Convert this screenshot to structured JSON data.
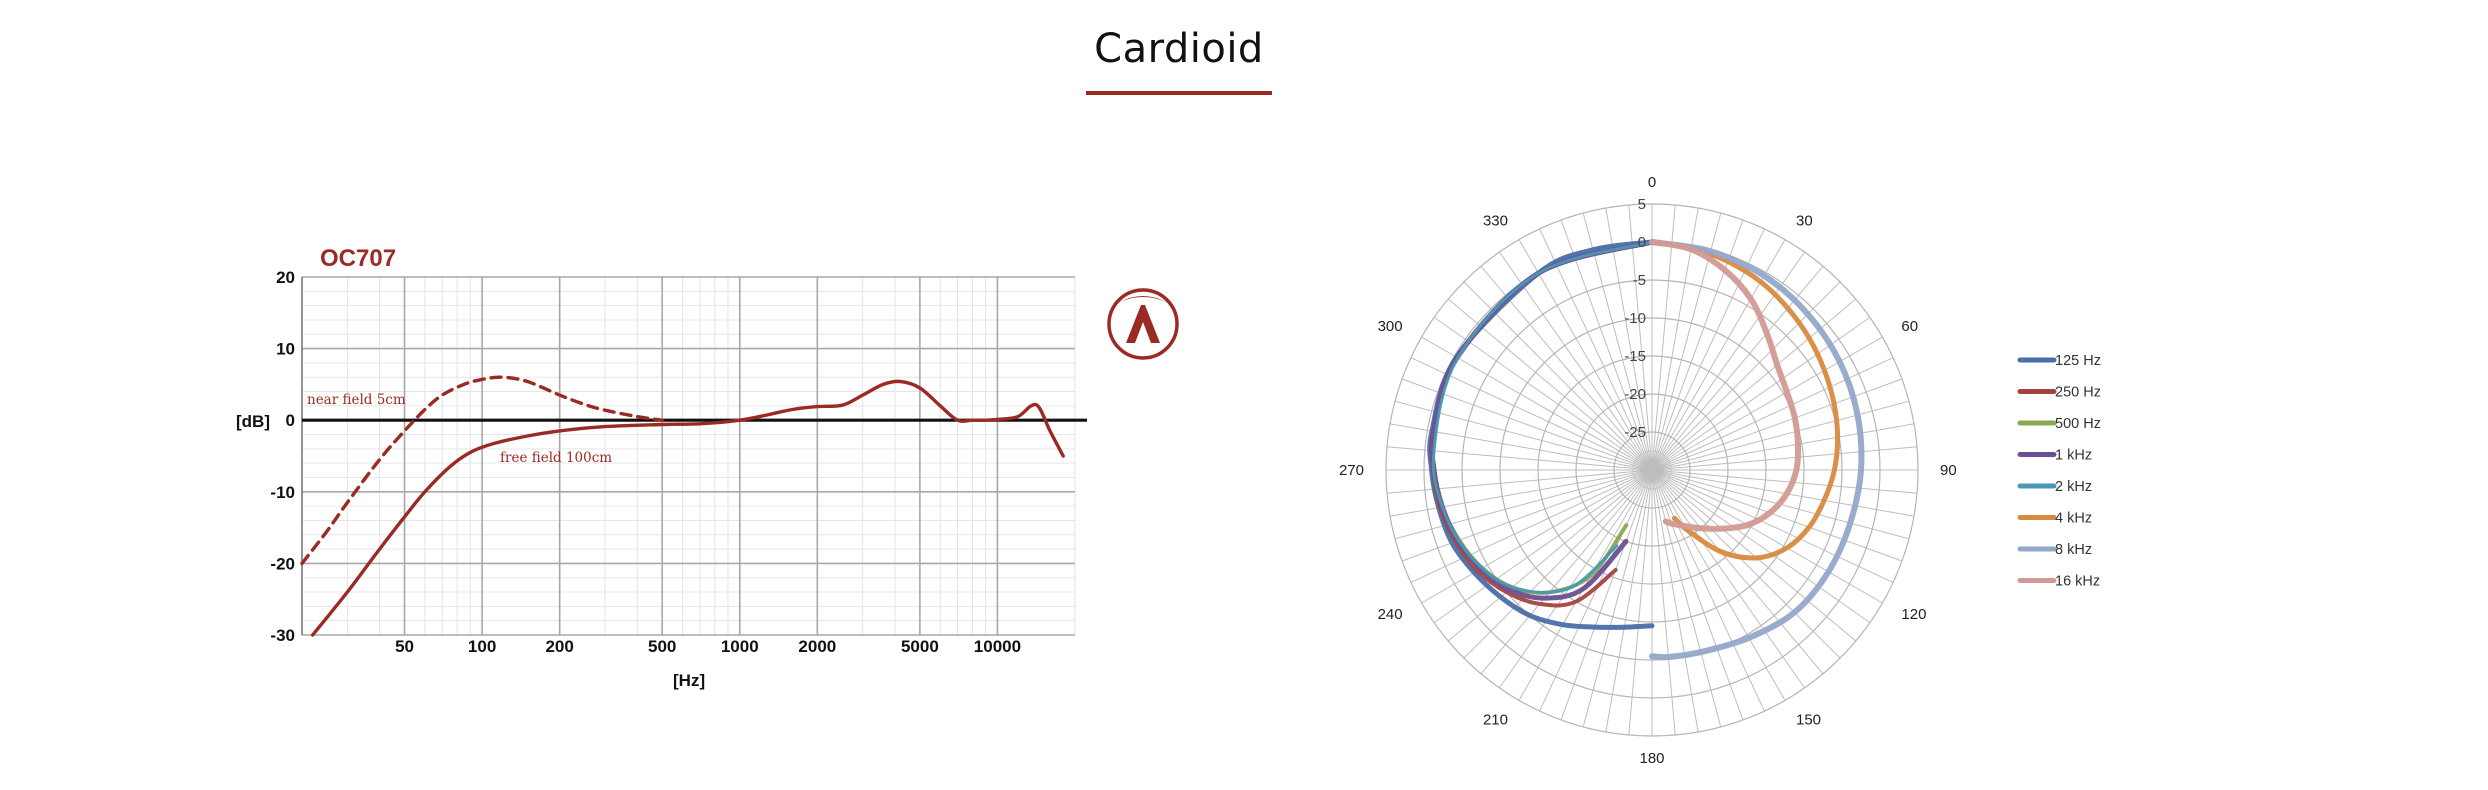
{
  "page": {
    "title": "Cardioid"
  },
  "chart_data": [
    {
      "type": "line",
      "title": "OC707",
      "xscale": "log",
      "xlabel": "[Hz]",
      "ylabel": "[dB]",
      "xlim": [
        20,
        20000
      ],
      "ylim": [
        -30,
        20
      ],
      "xticks": [
        50,
        100,
        200,
        500,
        1000,
        2000,
        5000,
        10000
      ],
      "xtick_labels": [
        "50",
        "100",
        "200",
        "500",
        "1000",
        "2000",
        "5000",
        "10000"
      ],
      "yticks": [
        20,
        10,
        0,
        -10,
        -20,
        -30
      ],
      "ytick_labels": [
        "20",
        "10",
        "0",
        "-10",
        "-20",
        "-30"
      ],
      "grid": true,
      "reference_line": 0,
      "annotations": [
        {
          "text": "near field 5cm"
        },
        {
          "text": "free field 100cm"
        }
      ],
      "series": [
        {
          "label_ref": "near field 5cm",
          "style": "dashed",
          "color": "#9b2a24",
          "points": [
            [
              20,
              -20
            ],
            [
              25,
              -15.5
            ],
            [
              30,
              -11.5
            ],
            [
              40,
              -5.5
            ],
            [
              50,
              -1.5
            ],
            [
              60,
              1.5
            ],
            [
              70,
              3.5
            ],
            [
              85,
              5
            ],
            [
              100,
              5.7
            ],
            [
              120,
              6
            ],
            [
              150,
              5.4
            ],
            [
              200,
              3.5
            ],
            [
              250,
              2.2
            ],
            [
              300,
              1.4
            ],
            [
              400,
              0.5
            ],
            [
              500,
              0
            ]
          ]
        },
        {
          "label_ref": "free field 100cm",
          "style": "solid",
          "color": "#9b2a24",
          "points": [
            [
              22,
              -30
            ],
            [
              30,
              -24
            ],
            [
              40,
              -18
            ],
            [
              50,
              -13.5
            ],
            [
              60,
              -10
            ],
            [
              75,
              -6.5
            ],
            [
              90,
              -4.5
            ],
            [
              110,
              -3.3
            ],
            [
              150,
              -2.2
            ],
            [
              200,
              -1.5
            ],
            [
              300,
              -0.9
            ],
            [
              500,
              -0.6
            ],
            [
              700,
              -0.5
            ],
            [
              1000,
              0
            ],
            [
              1300,
              0.8
            ],
            [
              1600,
              1.5
            ],
            [
              2000,
              1.9
            ],
            [
              2500,
              2.1
            ],
            [
              3000,
              3.5
            ],
            [
              3600,
              5
            ],
            [
              4200,
              5.4
            ],
            [
              5000,
              4.5
            ],
            [
              6000,
              2
            ],
            [
              7000,
              0
            ],
            [
              8000,
              0
            ],
            [
              9000,
              0
            ],
            [
              10000,
              0.1
            ],
            [
              12000,
              0.5
            ],
            [
              13500,
              2
            ],
            [
              14500,
              1.8
            ],
            [
              16000,
              -1.5
            ],
            [
              18000,
              -5
            ]
          ]
        }
      ]
    },
    {
      "type": "polar",
      "angle_ticks": [
        0,
        30,
        60,
        90,
        120,
        150,
        180,
        210,
        240,
        270,
        300,
        330
      ],
      "angle_tick_labels": [
        "0",
        "30",
        "60",
        "90",
        "120",
        "150",
        "180",
        "210",
        "240",
        "270",
        "300",
        "330"
      ],
      "radial_range": [
        -30,
        5
      ],
      "radial_ticks": [
        5,
        0,
        -5,
        -10,
        -15,
        -20,
        -25
      ],
      "radial_tick_labels": [
        "5",
        "0",
        "-5",
        "-10",
        "-15",
        "-20",
        "-25"
      ],
      "legend": "right",
      "legend_entries": [
        "125 Hz",
        "250 Hz",
        "500 Hz",
        "1 kHz",
        "2 kHz",
        "4 kHz",
        "8 kHz",
        "16 kHz"
      ],
      "series": [
        {
          "name": "125 Hz",
          "color": "#4a6ea8",
          "width": 5,
          "angle_range": [
            180,
            360
          ],
          "points": [
            [
              180,
              -9.5
            ],
            [
              190,
              -9
            ],
            [
              200,
              -8
            ],
            [
              210,
              -6.5
            ],
            [
              220,
              -5
            ],
            [
              230,
              -4
            ],
            [
              240,
              -3
            ],
            [
              250,
              -2
            ],
            [
              260,
              -1.5
            ],
            [
              270,
              -1
            ],
            [
              280,
              -0.6
            ],
            [
              300,
              -0.3
            ],
            [
              330,
              -0.1
            ],
            [
              345,
              0
            ],
            [
              360,
              0
            ]
          ]
        },
        {
          "name": "250 Hz",
          "color": "#a3433e",
          "width": 4,
          "angle_range": [
            200,
            360
          ],
          "points": [
            [
              200,
              -16
            ],
            [
              210,
              -10
            ],
            [
              220,
              -7
            ],
            [
              230,
              -5
            ],
            [
              240,
              -3.5
            ],
            [
              250,
              -2.5
            ],
            [
              260,
              -1.7
            ],
            [
              270,
              -1.2
            ],
            [
              280,
              -0.8
            ],
            [
              300,
              -0.4
            ],
            [
              330,
              -0.1
            ],
            [
              360,
              0
            ]
          ]
        },
        {
          "name": "500 Hz",
          "color": "#8aa851",
          "width": 4,
          "angle_range": [
            205,
            360
          ],
          "points": [
            [
              205,
              -22
            ],
            [
              210,
              -14
            ],
            [
              220,
              -9
            ],
            [
              230,
              -6
            ],
            [
              240,
              -4.2
            ],
            [
              250,
              -3
            ],
            [
              260,
              -2
            ],
            [
              270,
              -1.4
            ],
            [
              280,
              -0.9
            ],
            [
              300,
              -0.4
            ],
            [
              330,
              -0.1
            ],
            [
              360,
              0
            ]
          ]
        },
        {
          "name": "1 kHz",
          "color": "#6b4f93",
          "width": 5,
          "angle_range": [
            200,
            360
          ],
          "points": [
            [
              200,
              -20
            ],
            [
              210,
              -12
            ],
            [
              220,
              -8
            ],
            [
              230,
              -5.5
            ],
            [
              240,
              -4
            ],
            [
              250,
              -2.8
            ],
            [
              260,
              -2
            ],
            [
              270,
              -1.3
            ],
            [
              280,
              -0.8
            ],
            [
              300,
              -0.4
            ],
            [
              330,
              -0.1
            ],
            [
              360,
              0
            ]
          ]
        },
        {
          "name": "2 kHz",
          "color": "#4b98b4",
          "width": 3,
          "angle_range": [
            205,
            360
          ],
          "points": [
            [
              205,
              -19
            ],
            [
              215,
              -11
            ],
            [
              230,
              -6
            ],
            [
              245,
              -3.5
            ],
            [
              260,
              -2
            ],
            [
              275,
              -1.2
            ],
            [
              300,
              -0.5
            ],
            [
              330,
              -0.1
            ],
            [
              360,
              0
            ]
          ]
        },
        {
          "name": "4 kHz",
          "color": "#d88a3e",
          "width": 5,
          "angle_range": [
            0,
            155
          ],
          "points": [
            [
              0,
              0
            ],
            [
              10,
              -0.3
            ],
            [
              20,
              -0.8
            ],
            [
              30,
              -1.4
            ],
            [
              40,
              -2.2
            ],
            [
              50,
              -3
            ],
            [
              60,
              -3.8
            ],
            [
              70,
              -4.5
            ],
            [
              80,
              -5.2
            ],
            [
              90,
              -6
            ],
            [
              100,
              -7
            ],
            [
              110,
              -8
            ],
            [
              120,
              -9.5
            ],
            [
              130,
              -12
            ],
            [
              140,
              -16
            ],
            [
              150,
              -21
            ],
            [
              155,
              -23
            ]
          ]
        },
        {
          "name": "8 kHz",
          "color": "#93a8cb",
          "width": 6,
          "angle_range": [
            0,
            180
          ],
          "points": [
            [
              0,
              0
            ],
            [
              15,
              -0.2
            ],
            [
              30,
              -0.5
            ],
            [
              45,
              -1
            ],
            [
              60,
              -1.5
            ],
            [
              75,
              -2
            ],
            [
              90,
              -2.5
            ],
            [
              105,
              -3
            ],
            [
              120,
              -3.2
            ],
            [
              135,
              -3.5
            ],
            [
              150,
              -4.5
            ],
            [
              165,
              -5.2
            ],
            [
              175,
              -5.3
            ],
            [
              180,
              -5.5
            ]
          ]
        },
        {
          "name": "16 kHz",
          "color": "#d29a94",
          "width": 6,
          "angle_range": [
            0,
            165
          ],
          "points": [
            [
              0,
              0
            ],
            [
              10,
              -0.5
            ],
            [
              20,
              -2
            ],
            [
              30,
              -4
            ],
            [
              40,
              -6.5
            ],
            [
              50,
              -8.5
            ],
            [
              60,
              -9.5
            ],
            [
              70,
              -10
            ],
            [
              80,
              -10.5
            ],
            [
              90,
              -11
            ],
            [
              100,
              -12
            ],
            [
              110,
              -13.5
            ],
            [
              120,
              -15.5
            ],
            [
              130,
              -18
            ],
            [
              140,
              -20
            ],
            [
              150,
              -21.5
            ],
            [
              160,
              -22.5
            ],
            [
              165,
              -23
            ]
          ]
        }
      ]
    }
  ]
}
